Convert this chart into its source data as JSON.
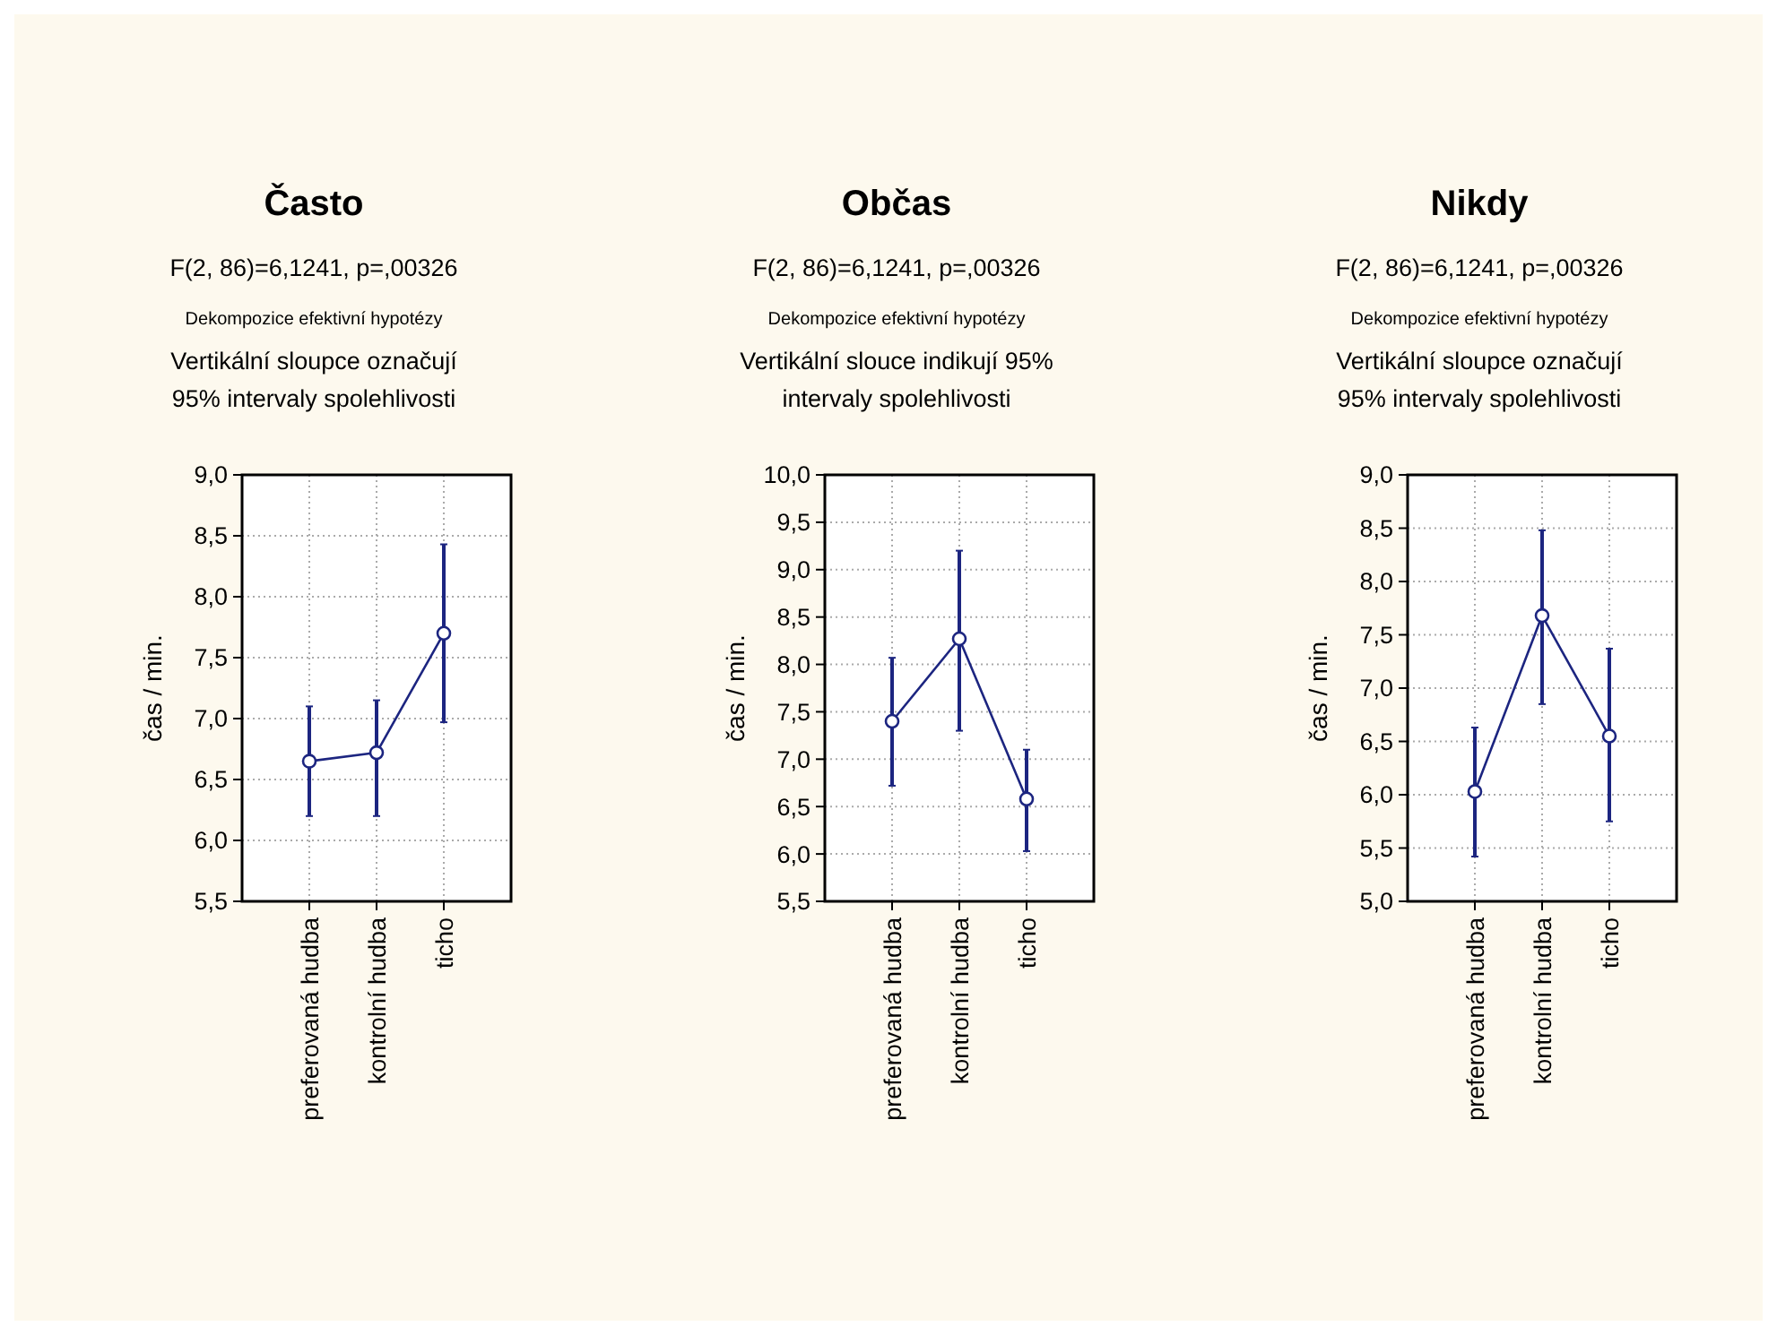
{
  "chart_data": [
    {
      "type": "line",
      "title": "Často",
      "subtitle": "F(2, 86)=6,1241, p=,00326",
      "annotations": [
        "Dekompozice efektivní hypotézy",
        "Vertikální sloupce označují\n95% intervaly spolehlivosti"
      ],
      "ylabel": "čas / min.",
      "categories": [
        "preferovaná hudba",
        "kontrolní hudba",
        "ticho"
      ],
      "series": [
        {
          "color": "#1c2580",
          "values": [
            6.65,
            6.72,
            7.7
          ],
          "errors": [
            [
              6.2,
              7.1
            ],
            [
              6.2,
              7.15
            ],
            [
              6.97,
              8.43
            ]
          ]
        }
      ],
      "ylim": [
        5.5,
        9.0
      ],
      "yticks": [
        {
          "value": 5.5,
          "label": "5,5"
        },
        {
          "value": 6,
          "label": "6,0"
        },
        {
          "value": 6.5,
          "label": "6,5"
        },
        {
          "value": 7,
          "label": "7,0"
        },
        {
          "value": 7.5,
          "label": "7,5"
        },
        {
          "value": 8,
          "label": "8,0"
        },
        {
          "value": 8.5,
          "label": "8,5"
        },
        {
          "value": 9,
          "label": "9,0"
        }
      ],
      "grid": true,
      "marker": "circle",
      "line_style": "solid"
    },
    {
      "type": "line",
      "title": "Občas",
      "subtitle": "F(2, 86)=6,1241, p=,00326",
      "annotations": [
        "Dekompozice efektivní hypotézy",
        "Vertikální slouce indikují 95%\nintervaly spolehlivosti"
      ],
      "ylabel": "čas / min.",
      "categories": [
        "preferovaná hudba",
        "kontrolní hudba",
        "ticho"
      ],
      "series": [
        {
          "color": "#1c2580",
          "values": [
            7.4,
            8.27,
            6.58
          ],
          "errors": [
            [
              6.72,
              8.07
            ],
            [
              7.3,
              9.2
            ],
            [
              6.03,
              7.1
            ]
          ]
        }
      ],
      "ylim": [
        5.5,
        10.0
      ],
      "yticks": [
        {
          "value": 5.5,
          "label": "5,5"
        },
        {
          "value": 6,
          "label": "6,0"
        },
        {
          "value": 6.5,
          "label": "6,5"
        },
        {
          "value": 7,
          "label": "7,0"
        },
        {
          "value": 7.5,
          "label": "7,5"
        },
        {
          "value": 8,
          "label": "8,0"
        },
        {
          "value": 8.5,
          "label": "8,5"
        },
        {
          "value": 9,
          "label": "9,0"
        },
        {
          "value": 9.5,
          "label": "9,5"
        },
        {
          "value": 10,
          "label": "10,0"
        }
      ],
      "grid": true,
      "marker": "circle",
      "line_style": "solid"
    },
    {
      "type": "line",
      "title": "Nikdy",
      "subtitle": "F(2, 86)=6,1241, p=,00326",
      "annotations": [
        "Dekompozice efektivní hypotézy",
        "Vertikální sloupce označují\n95% intervaly spolehlivosti"
      ],
      "ylabel": "čas / min.",
      "categories": [
        "preferovaná hudba",
        "kontrolní hudba",
        "ticho"
      ],
      "series": [
        {
          "color": "#1c2580",
          "values": [
            6.03,
            7.68,
            6.55
          ],
          "errors": [
            [
              5.42,
              6.63
            ],
            [
              6.85,
              8.48
            ],
            [
              5.75,
              7.37
            ]
          ]
        }
      ],
      "ylim": [
        5.0,
        9.0
      ],
      "yticks": [
        {
          "value": 5,
          "label": "5,0"
        },
        {
          "value": 5.5,
          "label": "5,5"
        },
        {
          "value": 6,
          "label": "6,0"
        },
        {
          "value": 6.5,
          "label": "6,5"
        },
        {
          "value": 7,
          "label": "7,0"
        },
        {
          "value": 7.5,
          "label": "7,5"
        },
        {
          "value": 8,
          "label": "8,0"
        },
        {
          "value": 8.5,
          "label": "8,5"
        },
        {
          "value": 9,
          "label": "9,0"
        }
      ],
      "grid": true,
      "marker": "circle",
      "line_style": "solid"
    }
  ]
}
